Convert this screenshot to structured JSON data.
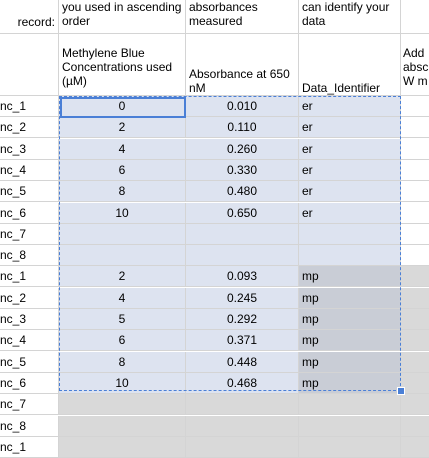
{
  "header_top": {
    "col0": "record:",
    "col1": "you used in ascending order",
    "col2": "absorbances measured",
    "col3": "can identify your data"
  },
  "header_main": {
    "col1": "Methylene Blue Concentrations used (µM)",
    "col2": "Absorbance at 650 nM",
    "col3": "Data_Identifier",
    "col4": "Add absc W m"
  },
  "rows": [
    {
      "label": "nc_1",
      "conc": "0",
      "abs": "0.010",
      "id": "er"
    },
    {
      "label": "nc_2",
      "conc": "2",
      "abs": "0.110",
      "id": "er"
    },
    {
      "label": "nc_3",
      "conc": "4",
      "abs": "0.260",
      "id": "er"
    },
    {
      "label": "nc_4",
      "conc": "6",
      "abs": "0.330",
      "id": "er"
    },
    {
      "label": "nc_5",
      "conc": "8",
      "abs": "0.480",
      "id": "er"
    },
    {
      "label": "nc_6",
      "conc": "10",
      "abs": "0.650",
      "id": "er"
    },
    {
      "label": "nc_7",
      "conc": "",
      "abs": "",
      "id": ""
    },
    {
      "label": "nc_8",
      "conc": "",
      "abs": "",
      "id": ""
    },
    {
      "label": "nc_1",
      "conc": "2",
      "abs": "0.093",
      "id": "mp"
    },
    {
      "label": "nc_2",
      "conc": "4",
      "abs": "0.245",
      "id": "mp"
    },
    {
      "label": "nc_3",
      "conc": "5",
      "abs": "0.292",
      "id": "mp"
    },
    {
      "label": "nc_4",
      "conc": "6",
      "abs": "0.371",
      "id": "mp"
    },
    {
      "label": "nc_5",
      "conc": "8",
      "abs": "0.448",
      "id": "mp"
    },
    {
      "label": "nc_6",
      "conc": "10",
      "abs": "0.468",
      "id": "mp"
    },
    {
      "label": "nc_7",
      "conc": "",
      "abs": "",
      "id": ""
    },
    {
      "label": "nc_8",
      "conc": "",
      "abs": "",
      "id": ""
    },
    {
      "label": "nc_1",
      "conc": "",
      "abs": "",
      "id": ""
    }
  ],
  "colors": {
    "selection": "#4a7fd6",
    "selected_fill": "#dde3f0",
    "gray_fill": "#d9d9d9"
  }
}
